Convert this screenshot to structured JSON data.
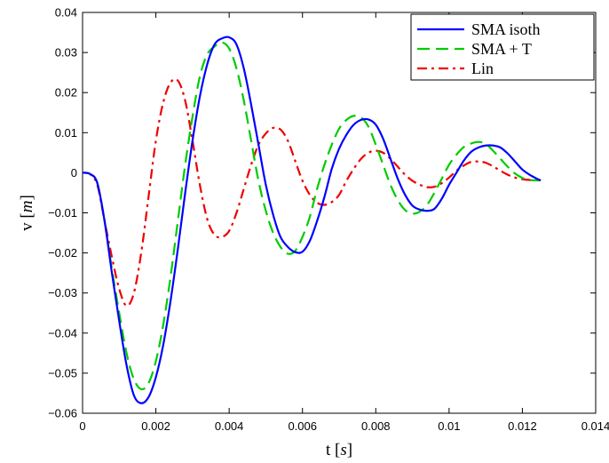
{
  "chart_data": {
    "type": "line",
    "title": "",
    "xlabel": "t",
    "xlabel_unit": "s",
    "ylabel": "v",
    "ylabel_unit": "m",
    "xlim": [
      0,
      0.014
    ],
    "ylim": [
      -0.06,
      0.04
    ],
    "x_ticks": [
      0,
      0.002,
      0.004,
      0.006,
      0.008,
      0.01,
      0.012,
      0.014
    ],
    "x_tick_labels": [
      "0",
      "0.002",
      "0.004",
      "0.006",
      "0.008",
      "0.01",
      "0.012",
      "0.014"
    ],
    "y_ticks": [
      -0.06,
      -0.05,
      -0.04,
      -0.03,
      -0.02,
      -0.01,
      0,
      0.01,
      0.02,
      0.03,
      0.04
    ],
    "y_tick_labels": [
      "−0.06",
      "−0.05",
      "−0.04",
      "−0.03",
      "−0.02",
      "−0.01",
      "0",
      "0.01",
      "0.02",
      "0.03",
      "0.04"
    ],
    "grid": false,
    "legend_position": "top-right",
    "series": [
      {
        "name": "SMA isoth",
        "color": "#0000ff",
        "dash": "solid",
        "points": [
          [
            0,
            0
          ],
          [
            0.0002,
            -0.0003
          ],
          [
            0.0004,
            -0.0025
          ],
          [
            0.0006,
            -0.012
          ],
          [
            0.0008,
            -0.025
          ],
          [
            0.001,
            -0.037
          ],
          [
            0.0012,
            -0.048
          ],
          [
            0.0014,
            -0.0555
          ],
          [
            0.0016,
            -0.0575
          ],
          [
            0.0018,
            -0.056
          ],
          [
            0.002,
            -0.051
          ],
          [
            0.0022,
            -0.043
          ],
          [
            0.0024,
            -0.032
          ],
          [
            0.0026,
            -0.019
          ],
          [
            0.0028,
            -0.005
          ],
          [
            0.003,
            0.008
          ],
          [
            0.0032,
            0.019
          ],
          [
            0.0034,
            0.027
          ],
          [
            0.0036,
            0.032
          ],
          [
            0.0038,
            0.0335
          ],
          [
            0.004,
            0.0338
          ],
          [
            0.0042,
            0.032
          ],
          [
            0.0044,
            0.026
          ],
          [
            0.0046,
            0.017
          ],
          [
            0.0048,
            0.007
          ],
          [
            0.005,
            -0.003
          ],
          [
            0.0052,
            -0.0105
          ],
          [
            0.0054,
            -0.016
          ],
          [
            0.0056,
            -0.0185
          ],
          [
            0.0058,
            -0.0198
          ],
          [
            0.006,
            -0.0197
          ],
          [
            0.0062,
            -0.017
          ],
          [
            0.0064,
            -0.012
          ],
          [
            0.0066,
            -0.006
          ],
          [
            0.0068,
            0.001
          ],
          [
            0.007,
            0.006
          ],
          [
            0.0072,
            0.0095
          ],
          [
            0.0074,
            0.012
          ],
          [
            0.0076,
            0.0132
          ],
          [
            0.0078,
            0.0133
          ],
          [
            0.008,
            0.012
          ],
          [
            0.0082,
            0.0085
          ],
          [
            0.0084,
            0.0035
          ],
          [
            0.0086,
            -0.0015
          ],
          [
            0.0088,
            -0.0055
          ],
          [
            0.009,
            -0.0082
          ],
          [
            0.0092,
            -0.0092
          ],
          [
            0.0094,
            -0.0095
          ],
          [
            0.0096,
            -0.009
          ],
          [
            0.0098,
            -0.0065
          ],
          [
            0.01,
            -0.003
          ],
          [
            0.0102,
            0
          ],
          [
            0.0104,
            0.003
          ],
          [
            0.0106,
            0.0052
          ],
          [
            0.0108,
            0.0063
          ],
          [
            0.011,
            0.0068
          ],
          [
            0.0112,
            0.0068
          ],
          [
            0.0114,
            0.0063
          ],
          [
            0.0116,
            0.0048
          ],
          [
            0.0118,
            0.0028
          ],
          [
            0.012,
            0.0008
          ],
          [
            0.0122,
            -0.0005
          ],
          [
            0.0124,
            -0.0015
          ],
          [
            0.0125,
            -0.0019
          ]
        ]
      },
      {
        "name": "SMA + T",
        "color": "#00cc00",
        "dash": "dashed",
        "points": [
          [
            0,
            0
          ],
          [
            0.0002,
            -0.0003
          ],
          [
            0.0004,
            -0.0025
          ],
          [
            0.0006,
            -0.012
          ],
          [
            0.0008,
            -0.024
          ],
          [
            0.001,
            -0.035
          ],
          [
            0.0012,
            -0.045
          ],
          [
            0.0014,
            -0.0515
          ],
          [
            0.0016,
            -0.054
          ],
          [
            0.0018,
            -0.0525
          ],
          [
            0.002,
            -0.047
          ],
          [
            0.0022,
            -0.038
          ],
          [
            0.0024,
            -0.026
          ],
          [
            0.0026,
            -0.012
          ],
          [
            0.0028,
            0.002
          ],
          [
            0.003,
            0.014
          ],
          [
            0.0032,
            0.024
          ],
          [
            0.0034,
            0.0295
          ],
          [
            0.0036,
            0.0315
          ],
          [
            0.0038,
            0.0325
          ],
          [
            0.004,
            0.031
          ],
          [
            0.0042,
            0.026
          ],
          [
            0.0044,
            0.018
          ],
          [
            0.0046,
            0.008
          ],
          [
            0.0048,
            -0.002
          ],
          [
            0.005,
            -0.0095
          ],
          [
            0.0052,
            -0.015
          ],
          [
            0.0054,
            -0.0185
          ],
          [
            0.0056,
            -0.0202
          ],
          [
            0.0058,
            -0.0195
          ],
          [
            0.006,
            -0.016
          ],
          [
            0.0062,
            -0.011
          ],
          [
            0.0064,
            -0.004
          ],
          [
            0.0066,
            0.002
          ],
          [
            0.0068,
            0.007
          ],
          [
            0.007,
            0.011
          ],
          [
            0.0072,
            0.0132
          ],
          [
            0.0074,
            0.0142
          ],
          [
            0.0076,
            0.0138
          ],
          [
            0.0078,
            0.0115
          ],
          [
            0.008,
            0.007
          ],
          [
            0.0082,
            0.002
          ],
          [
            0.0084,
            -0.003
          ],
          [
            0.0086,
            -0.0068
          ],
          [
            0.0088,
            -0.0093
          ],
          [
            0.009,
            -0.0102
          ],
          [
            0.0092,
            -0.0097
          ],
          [
            0.0094,
            -0.008
          ],
          [
            0.0096,
            -0.005
          ],
          [
            0.0098,
            -0.0015
          ],
          [
            0.01,
            0.002
          ],
          [
            0.0102,
            0.0045
          ],
          [
            0.0104,
            0.0064
          ],
          [
            0.0106,
            0.0073
          ],
          [
            0.0108,
            0.0077
          ],
          [
            0.011,
            0.0072
          ],
          [
            0.0112,
            0.0055
          ],
          [
            0.0114,
            0.0035
          ],
          [
            0.0116,
            0.0015
          ],
          [
            0.0118,
            -0.0002
          ],
          [
            0.012,
            -0.0013
          ],
          [
            0.0122,
            -0.0018
          ],
          [
            0.0124,
            -0.0019
          ],
          [
            0.0125,
            -0.0019
          ]
        ]
      },
      {
        "name": "Lin",
        "color": "#ee0000",
        "dash": "dashdot",
        "points": [
          [
            0,
            0
          ],
          [
            0.0002,
            -0.0003
          ],
          [
            0.0004,
            -0.003
          ],
          [
            0.0006,
            -0.012
          ],
          [
            0.0008,
            -0.021
          ],
          [
            0.001,
            -0.029
          ],
          [
            0.0012,
            -0.0332
          ],
          [
            0.0014,
            -0.03
          ],
          [
            0.0016,
            -0.02
          ],
          [
            0.0018,
            -0.006
          ],
          [
            0.002,
            0.008
          ],
          [
            0.0022,
            0.0175
          ],
          [
            0.0024,
            0.0225
          ],
          [
            0.0026,
            0.023
          ],
          [
            0.0028,
            0.018
          ],
          [
            0.003,
            0.008
          ],
          [
            0.0032,
            -0.003
          ],
          [
            0.0034,
            -0.0115
          ],
          [
            0.0036,
            -0.0155
          ],
          [
            0.0038,
            -0.016
          ],
          [
            0.004,
            -0.0145
          ],
          [
            0.0042,
            -0.01
          ],
          [
            0.0044,
            -0.004
          ],
          [
            0.0046,
            0.002
          ],
          [
            0.0048,
            0.007
          ],
          [
            0.005,
            0.0098
          ],
          [
            0.0052,
            0.0112
          ],
          [
            0.0054,
            0.0108
          ],
          [
            0.0056,
            0.008
          ],
          [
            0.0058,
            0.003
          ],
          [
            0.006,
            -0.002
          ],
          [
            0.0062,
            -0.0055
          ],
          [
            0.0064,
            -0.0075
          ],
          [
            0.0066,
            -0.008
          ],
          [
            0.0068,
            -0.0073
          ],
          [
            0.007,
            -0.0055
          ],
          [
            0.0072,
            -0.002
          ],
          [
            0.0074,
            0.001
          ],
          [
            0.0076,
            0.0035
          ],
          [
            0.0078,
            0.005
          ],
          [
            0.008,
            0.0055
          ],
          [
            0.0082,
            0.005
          ],
          [
            0.0084,
            0.0035
          ],
          [
            0.0086,
            0.0015
          ],
          [
            0.0088,
            -0.0005
          ],
          [
            0.009,
            -0.002
          ],
          [
            0.0092,
            -0.003
          ],
          [
            0.0094,
            -0.0036
          ],
          [
            0.0096,
            -0.0035
          ],
          [
            0.0098,
            -0.0026
          ],
          [
            0.01,
            -0.0012
          ],
          [
            0.0102,
            0.0005
          ],
          [
            0.0104,
            0.0018
          ],
          [
            0.0106,
            0.0027
          ],
          [
            0.0108,
            0.0028
          ],
          [
            0.011,
            0.0025
          ],
          [
            0.0112,
            0.0016
          ],
          [
            0.0114,
            0.0005
          ],
          [
            0.0116,
            -0.0005
          ],
          [
            0.0118,
            -0.0012
          ],
          [
            0.012,
            -0.0016
          ],
          [
            0.0122,
            -0.0018
          ],
          [
            0.0124,
            -0.0018
          ],
          [
            0.0125,
            -0.0018
          ]
        ]
      }
    ]
  }
}
